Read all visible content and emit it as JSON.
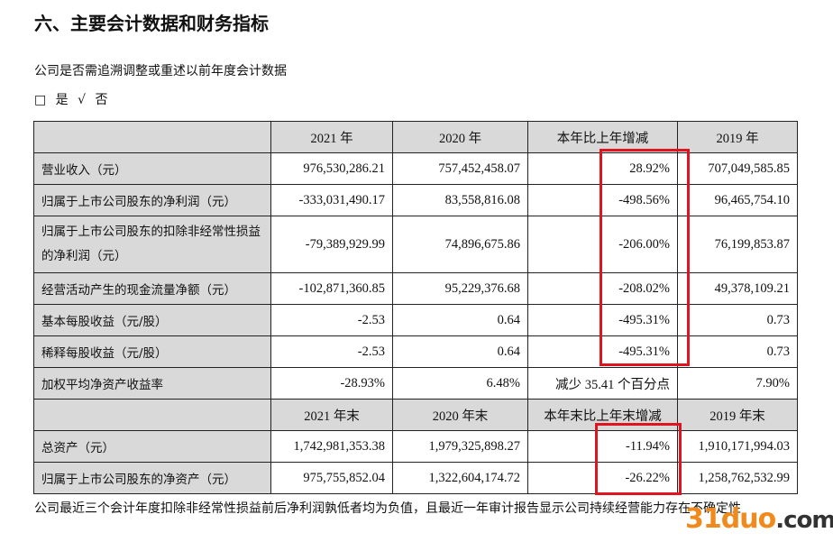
{
  "title": "六、主要会计数据和财务指标",
  "question": "公司是否需追溯调整或重述以前年度会计数据",
  "options": "□ 是 √ 否",
  "table": {
    "header1": [
      "",
      "2021 年",
      "2020 年",
      "本年比上年增减",
      "2019 年"
    ],
    "rows1": [
      [
        "营业收入（元）",
        "976,530,286.21",
        "757,452,458.07",
        "28.92%",
        "707,049,585.85"
      ],
      [
        "归属于上市公司股东的净利润（元）",
        "-333,031,490.17",
        "83,558,816.08",
        "-498.56%",
        "96,465,754.10"
      ],
      [
        "归属于上市公司股东的扣除非经常性损益的净利润（元）",
        "-79,389,929.99",
        "74,896,675.86",
        "-206.00%",
        "76,199,853.87"
      ],
      [
        "经营活动产生的现金流量净额（元）",
        "-102,871,360.85",
        "95,229,376.68",
        "-208.02%",
        "49,378,109.21"
      ],
      [
        "基本每股收益（元/股）",
        "-2.53",
        "0.64",
        "-495.31%",
        "0.73"
      ],
      [
        "稀释每股收益（元/股）",
        "-2.53",
        "0.64",
        "-495.31%",
        "0.73"
      ],
      [
        "加权平均净资产收益率",
        "-28.93%",
        "6.48%",
        "减少 35.41 个百分点",
        "7.90%"
      ]
    ],
    "header2": [
      "",
      "2021 年末",
      "2020 年末",
      "本年末比上年末增减",
      "2019 年末"
    ],
    "rows2": [
      [
        "总资产（元）",
        "1,742,981,353.38",
        "1,979,325,898.27",
        "-11.94%",
        "1,910,171,994.03"
      ],
      [
        "归属于上市公司股东的净资产（元）",
        "975,755,852.04",
        "1,322,604,174.72",
        "-26.22%",
        "1,258,762,532.99"
      ]
    ]
  },
  "footnote": "公司最近三个会计年度扣除非经常性损益前后净利润孰低者均为负值，且最近一年审计报告显示公司持续经营能力存在不确定性",
  "watermark": "31duo.com",
  "colors": {
    "highlight": "#e0141e",
    "header_bg": "#d9d9d9",
    "watermark": "#f08a1c"
  }
}
